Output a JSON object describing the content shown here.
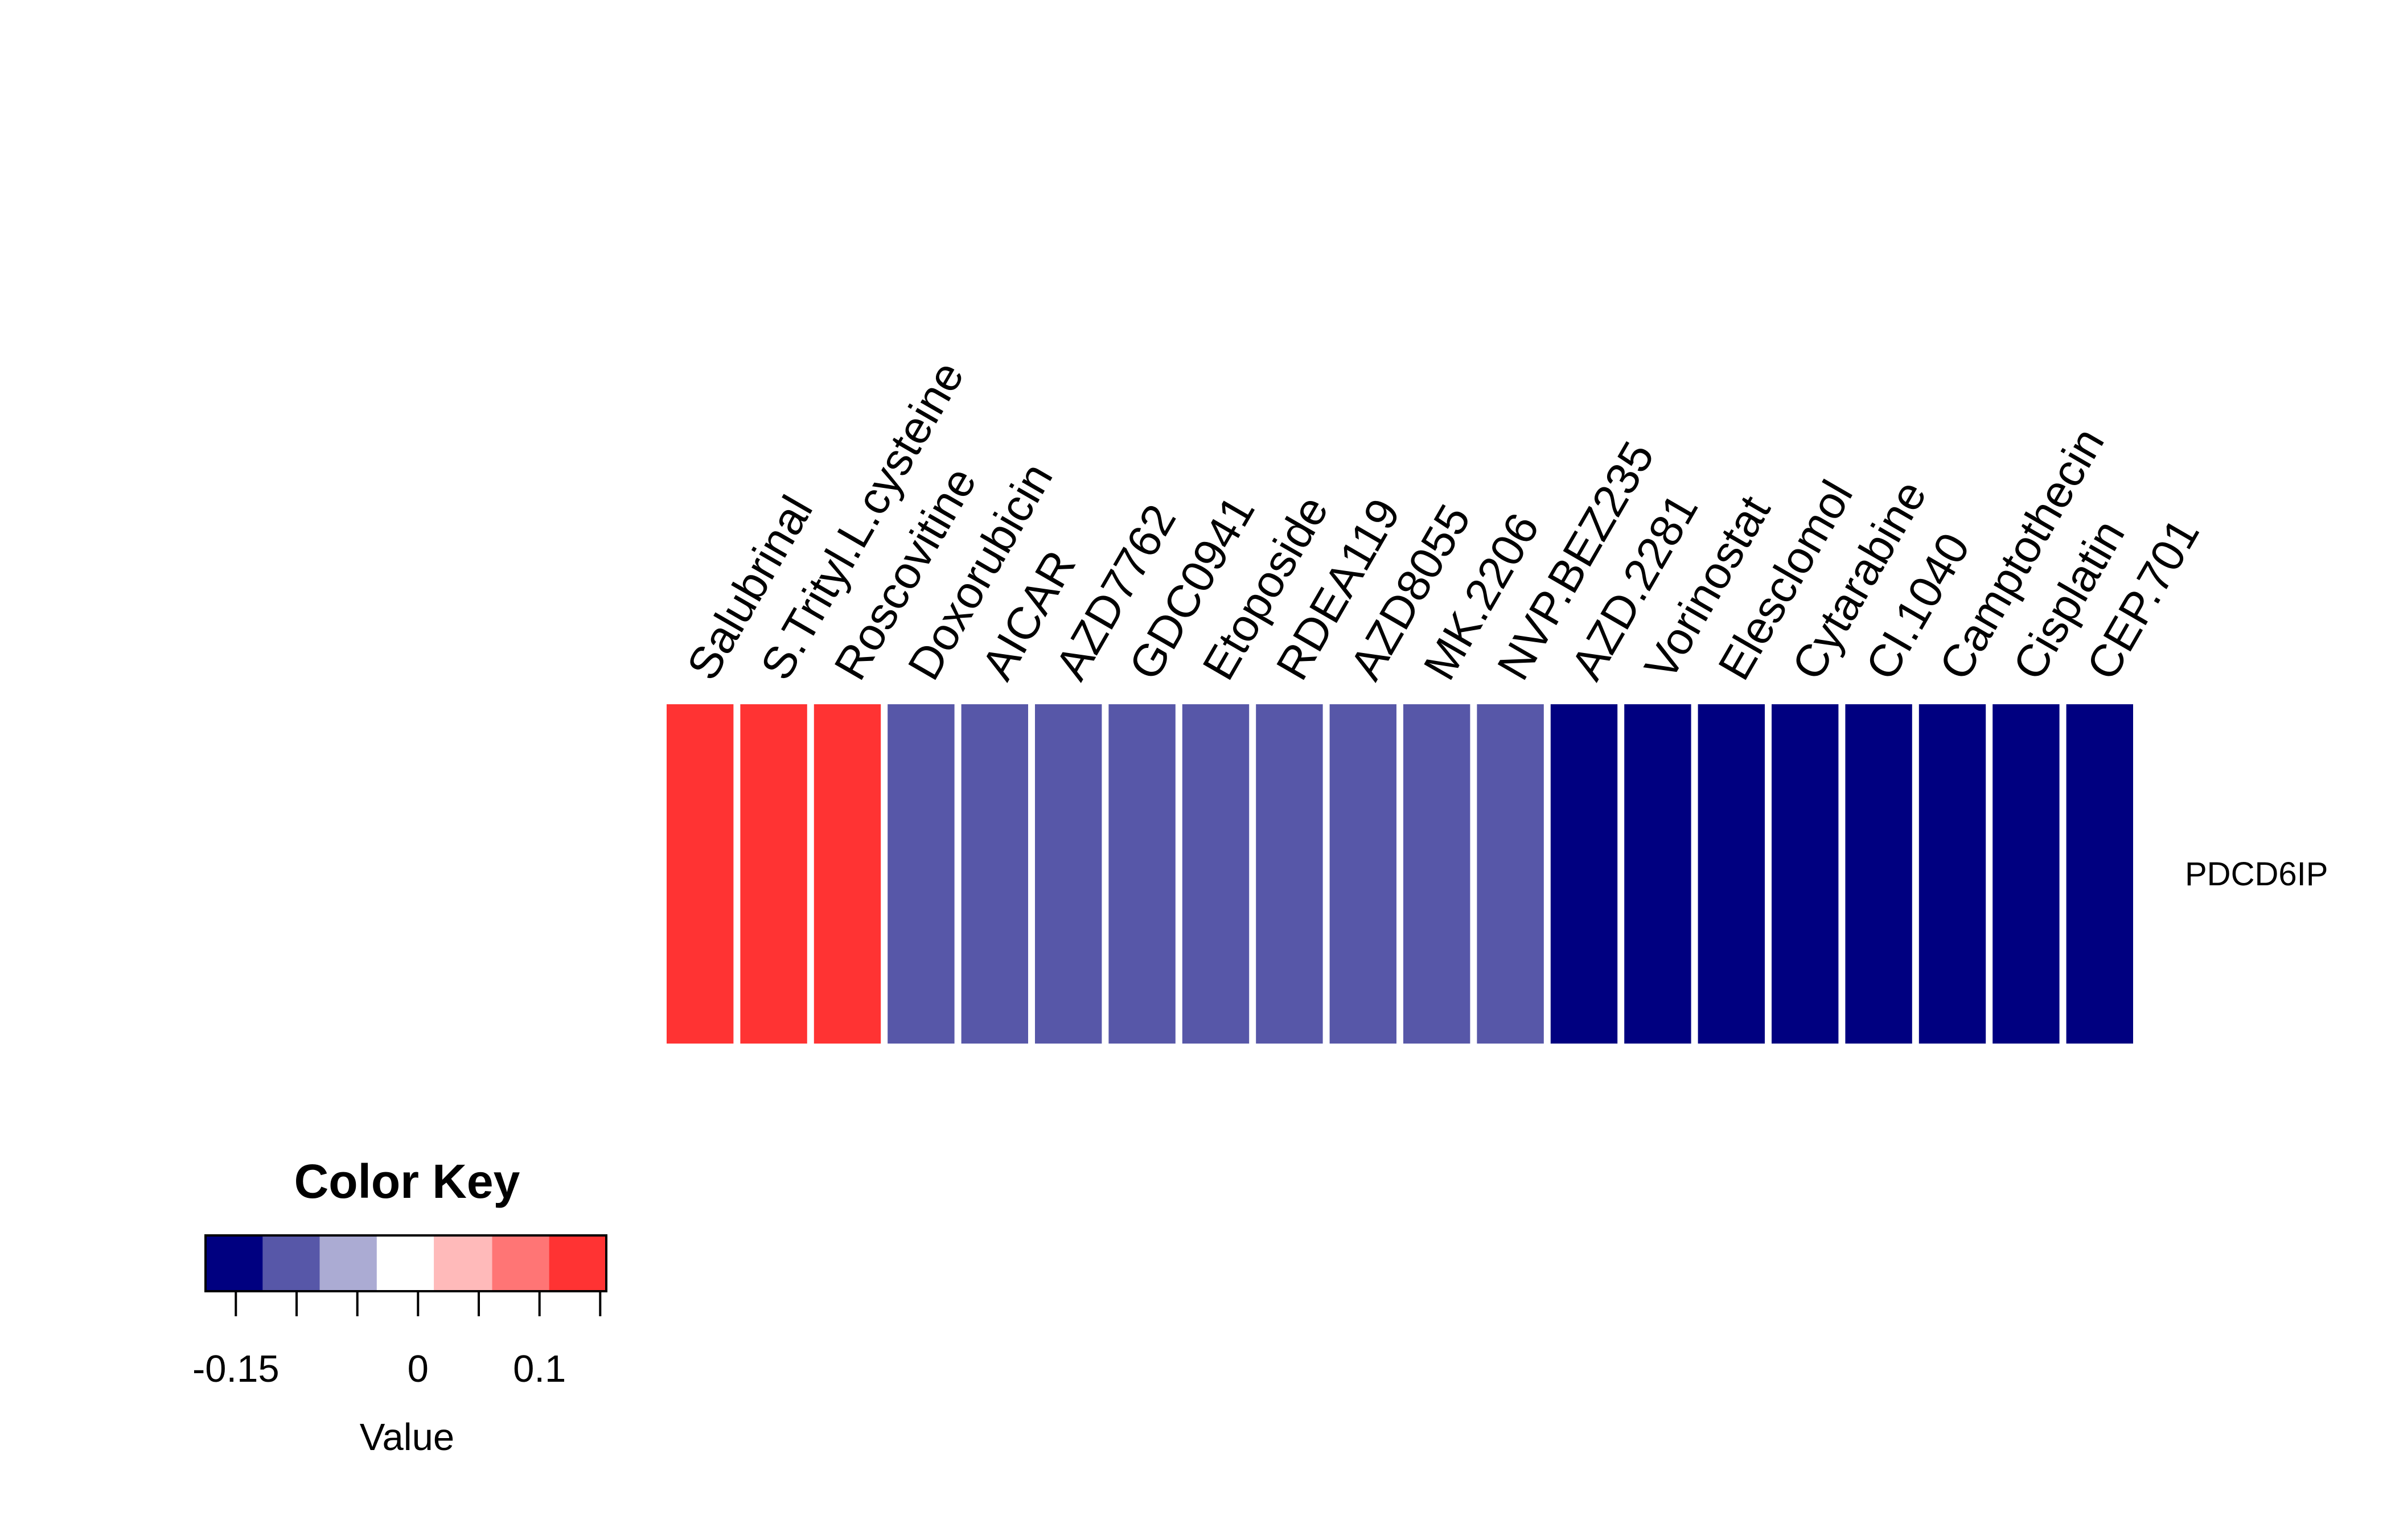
{
  "chart_data": {
    "type": "heatmap",
    "rows": [
      "PDCD6IP"
    ],
    "columns": [
      "Salubrinal",
      "S.Trityl.L.cysteine",
      "Roscovitine",
      "Doxorubicin",
      "AICAR",
      "AZD7762",
      "GDC0941",
      "Etoposide",
      "RDEA119",
      "AZD8055",
      "MK.2206",
      "NVP.BEZ235",
      "AZD.2281",
      "Vorinostat",
      "Elesclomol",
      "Cytarabine",
      "CI.1040",
      "Camptothecin",
      "Cisplatin",
      "CEP.701"
    ],
    "values": [
      [
        0.14,
        0.14,
        0.14,
        -0.12,
        -0.12,
        -0.12,
        -0.12,
        -0.12,
        -0.12,
        -0.12,
        -0.12,
        -0.12,
        -0.16,
        -0.16,
        -0.16,
        -0.16,
        -0.16,
        -0.16,
        -0.16,
        -0.16
      ]
    ],
    "color_key": {
      "title": "Color Key",
      "xlabel": "Value",
      "range": [
        -0.175,
        0.155
      ],
      "breaks": [
        -0.175,
        -0.128,
        -0.081,
        -0.034,
        0.013,
        0.061,
        0.108,
        0.155
      ],
      "colors": [
        "#000080",
        "#5757A8",
        "#ABABD3",
        "#FFFFFF",
        "#FFBABA",
        "#FF7575",
        "#FF3333"
      ],
      "tick_values": [
        -0.15,
        -0.1,
        -0.05,
        0,
        0.05,
        0.1,
        0.15
      ],
      "tick_labels": [
        "-0.15",
        "",
        "",
        "0",
        "",
        "0.1",
        ""
      ]
    }
  }
}
